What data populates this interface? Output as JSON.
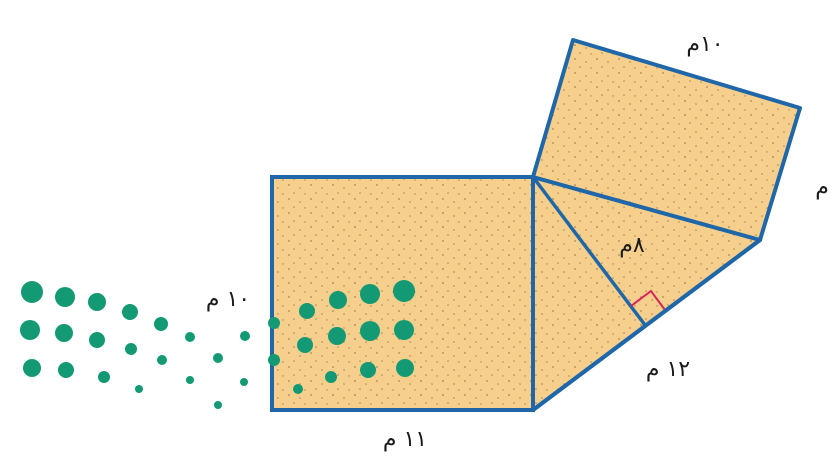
{
  "labels": {
    "top": "١٠م",
    "right": "م",
    "height": "٨م",
    "slant": "١٢ م",
    "bottom": "١١ م",
    "left": "١٠ م"
  }
}
